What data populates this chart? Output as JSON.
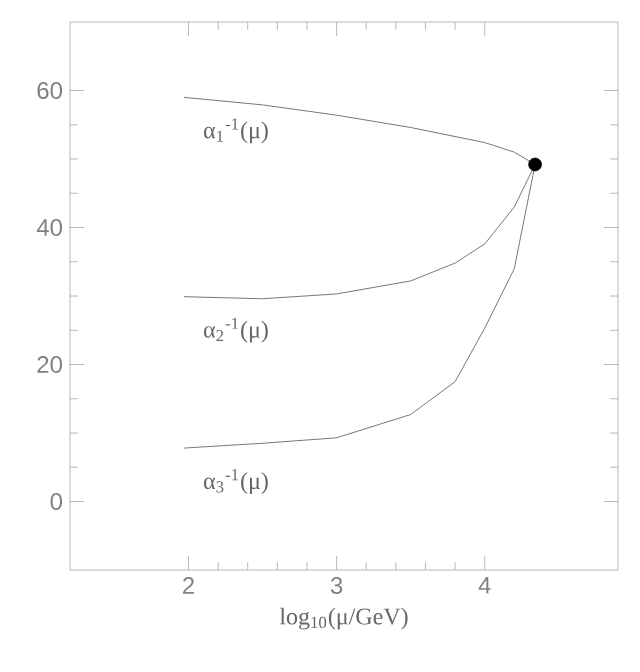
{
  "chart_data": {
    "type": "line",
    "xlabel": "log$_{10}$(μ/GeV)",
    "xlim": [
      1.2,
      4.9
    ],
    "ylim": [
      -10,
      70
    ],
    "xticks": [
      2,
      3,
      4
    ],
    "yticks": [
      0,
      20,
      40,
      60
    ],
    "series": [
      {
        "name": "α$_{1}$$^{-1}$(μ)",
        "color": "#777777",
        "marker": "none",
        "x": [
          1.97,
          2.5,
          3,
          3.5,
          4,
          4.2,
          4.34
        ],
        "values": [
          59,
          57.9,
          56.4,
          54.6,
          52.4,
          51,
          49.2
        ]
      },
      {
        "name": "α$_{2}$$^{-1}$(μ)",
        "color": "#777777",
        "marker": "none",
        "x": [
          1.97,
          2.5,
          3,
          3.5,
          3.8,
          4,
          4.2,
          4.34
        ],
        "values": [
          29.9,
          29.6,
          30.3,
          32.2,
          34.8,
          37.6,
          43,
          49.2
        ]
      },
      {
        "name": "α$_{3}$$^{-1}$(μ)",
        "color": "#777777",
        "marker": "none",
        "x": [
          1.97,
          2.5,
          3,
          3.5,
          3.8,
          4,
          4.2,
          4.34
        ],
        "values": [
          7.8,
          8.5,
          9.3,
          12.7,
          17.5,
          25.3,
          34,
          49.2
        ]
      },
      {
        "type": "scatter",
        "color": "#000000",
        "marker": "circle",
        "x": [
          4.34
        ],
        "values": [
          49.2
        ]
      }
    ]
  }
}
